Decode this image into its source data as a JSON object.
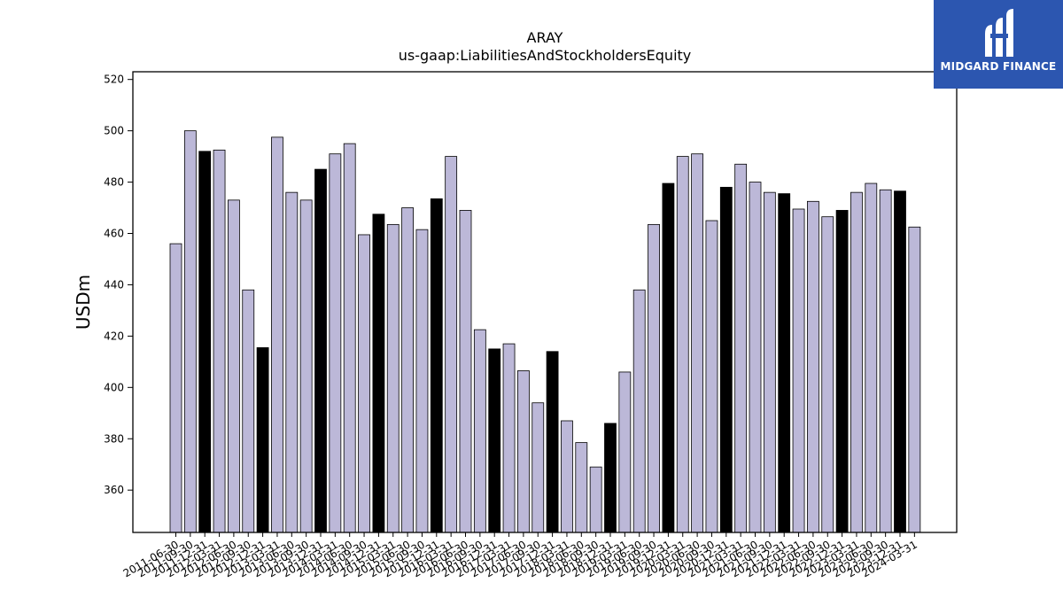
{
  "chart_data": {
    "type": "bar",
    "title": "ARAY",
    "subtitle": "us-gaap:LiabilitiesAndStockholdersEquity",
    "xlabel": "",
    "ylabel": "USDm",
    "ylim": [
      343.5,
      523
    ],
    "yticks": [
      360,
      380,
      400,
      420,
      440,
      460,
      480,
      500,
      520
    ],
    "grid": false,
    "legend": "none",
    "colors": {
      "default": "#bcb8d8",
      "highlight": "#000000",
      "edge": "#000000"
    },
    "categories": [
      "2011-06-30",
      "2011-09-30",
      "2011-12-31",
      "2012-03-31",
      "2012-06-30",
      "2012-09-30",
      "2012-12-31",
      "2013-03-31",
      "2013-06-30",
      "2013-09-30",
      "2013-12-31",
      "2014-03-31",
      "2014-06-30",
      "2014-09-30",
      "2014-12-31",
      "2015-03-31",
      "2015-06-30",
      "2015-09-30",
      "2015-12-31",
      "2016-03-31",
      "2016-06-30",
      "2016-09-30",
      "2016-12-31",
      "2017-03-31",
      "2017-06-30",
      "2017-09-30",
      "2017-12-31",
      "2018-03-31",
      "2018-06-30",
      "2018-09-30",
      "2018-12-31",
      "2019-03-31",
      "2019-06-30",
      "2019-09-30",
      "2019-12-31",
      "2020-03-31",
      "2020-06-30",
      "2020-09-30",
      "2020-12-31",
      "2021-03-31",
      "2021-06-30",
      "2021-09-30",
      "2021-12-31",
      "2022-03-31",
      "2022-06-30",
      "2022-09-30",
      "2022-12-31",
      "2023-03-31",
      "2023-06-30",
      "2023-09-30",
      "2023-12-31",
      "2024-03-31"
    ],
    "values": [
      456,
      500,
      492,
      492.5,
      473,
      438,
      415.5,
      497.5,
      476,
      473,
      485,
      491,
      495,
      459.5,
      467.5,
      463.5,
      470,
      461.5,
      473.5,
      490,
      469,
      422.5,
      415,
      417,
      406.5,
      394,
      414,
      387,
      378.5,
      369,
      386,
      406,
      438,
      463.5,
      479.5,
      490,
      491,
      465,
      478,
      487,
      480,
      476,
      475.5,
      469.5,
      472.5,
      466.5,
      469,
      476,
      479.5,
      477,
      476.5,
      462.5
    ],
    "highlight": [
      false,
      false,
      true,
      false,
      false,
      false,
      true,
      false,
      false,
      false,
      true,
      false,
      false,
      false,
      true,
      false,
      false,
      false,
      true,
      false,
      false,
      false,
      true,
      false,
      false,
      false,
      true,
      false,
      false,
      false,
      true,
      false,
      false,
      false,
      true,
      false,
      false,
      false,
      true,
      false,
      false,
      false,
      true,
      false,
      false,
      false,
      true,
      false,
      false,
      false,
      true,
      false
    ]
  },
  "logo": {
    "text": "MIDGARD FINANCE",
    "icon": "midgard-logo-icon",
    "background": "#2c56b0"
  }
}
